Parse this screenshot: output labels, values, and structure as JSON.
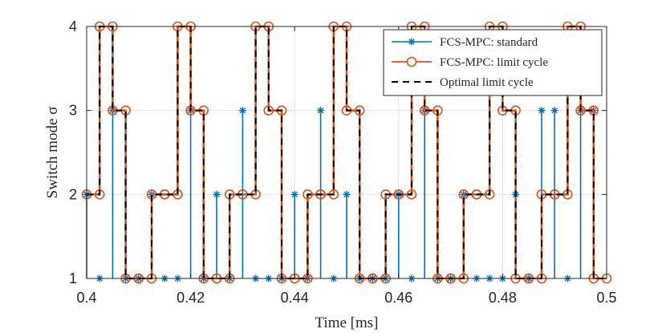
{
  "chart_data": {
    "type": "line",
    "title": "",
    "xlabel": "Time [ms]",
    "ylabel": "Switch mode σ",
    "xlim": [
      0.4,
      0.5
    ],
    "ylim": [
      1,
      4
    ],
    "x_ticks": [
      "0.4",
      "0.42",
      "0.44",
      "0.46",
      "0.48",
      "0.5"
    ],
    "y_ticks": [
      "1",
      "2",
      "3",
      "4"
    ],
    "grid": true,
    "legend_position": "top-right",
    "step_period_ms": 0.0025,
    "series": [
      {
        "name": "FCS-MPC: standard",
        "color": "#0072BD",
        "marker": "asterisk",
        "style": "stem",
        "x": [
          0.4,
          0.4025,
          0.405,
          0.4075,
          0.41,
          0.4125,
          0.415,
          0.4175,
          0.42,
          0.4225,
          0.425,
          0.4275,
          0.43,
          0.4325,
          0.435,
          0.4375,
          0.44,
          0.4425,
          0.445,
          0.4475,
          0.45,
          0.4525,
          0.455,
          0.4575,
          0.46,
          0.4625,
          0.465,
          0.4675,
          0.47,
          0.4725,
          0.475,
          0.4775,
          0.48,
          0.4825,
          0.485,
          0.4875,
          0.49,
          0.4925,
          0.495,
          0.4975
        ],
        "y": [
          2,
          1,
          3,
          1,
          1,
          2,
          1,
          1,
          3,
          1,
          2,
          1,
          3,
          1,
          1,
          1,
          2,
          1,
          3,
          1,
          2,
          1,
          1,
          1,
          2,
          1,
          3,
          1,
          1,
          2,
          1,
          1,
          1,
          2,
          1,
          3,
          3,
          1,
          3,
          3
        ]
      },
      {
        "name": "FCS-MPC: limit cycle",
        "color": "#D95319",
        "marker": "circle",
        "style": "stairs",
        "x": [
          0.4,
          0.4025,
          0.405,
          0.4075,
          0.41,
          0.4125,
          0.415,
          0.4175,
          0.42,
          0.4225,
          0.425,
          0.4275,
          0.43,
          0.4325,
          0.435,
          0.4375,
          0.44,
          0.4425,
          0.445,
          0.4475,
          0.45,
          0.4525,
          0.455,
          0.4575,
          0.46,
          0.4625,
          0.465,
          0.4675,
          0.47,
          0.4725,
          0.475,
          0.4775,
          0.48,
          0.4825,
          0.485,
          0.4875,
          0.49,
          0.4925,
          0.495,
          0.4975
        ],
        "y": [
          2,
          4,
          3,
          1,
          1,
          2,
          2,
          4,
          3,
          1,
          1,
          2,
          2,
          4,
          3,
          1,
          1,
          2,
          2,
          4,
          3,
          1,
          1,
          2,
          2,
          4,
          3,
          1,
          1,
          2,
          2,
          4,
          3,
          1,
          1,
          2,
          2,
          4,
          3,
          1
        ]
      },
      {
        "name": "Optimal limit cycle",
        "color": "#000000",
        "marker": "none",
        "style": "stairs-dashed",
        "x": [
          0.4,
          0.4025,
          0.405,
          0.4075,
          0.41,
          0.4125,
          0.415,
          0.4175,
          0.42,
          0.4225,
          0.425,
          0.4275,
          0.43,
          0.4325,
          0.435,
          0.4375,
          0.44,
          0.4425,
          0.445,
          0.4475,
          0.45,
          0.4525,
          0.455,
          0.4575,
          0.46,
          0.4625,
          0.465,
          0.4675,
          0.47,
          0.4725,
          0.475,
          0.4775,
          0.48,
          0.4825,
          0.485,
          0.4875,
          0.49,
          0.4925,
          0.495,
          0.4975
        ],
        "y": [
          2,
          4,
          3,
          1,
          1,
          2,
          2,
          4,
          3,
          1,
          1,
          2,
          2,
          4,
          3,
          1,
          1,
          2,
          2,
          4,
          3,
          1,
          1,
          2,
          2,
          4,
          3,
          1,
          1,
          2,
          2,
          4,
          3,
          1,
          1,
          2,
          2,
          4,
          3,
          1
        ]
      }
    ]
  }
}
